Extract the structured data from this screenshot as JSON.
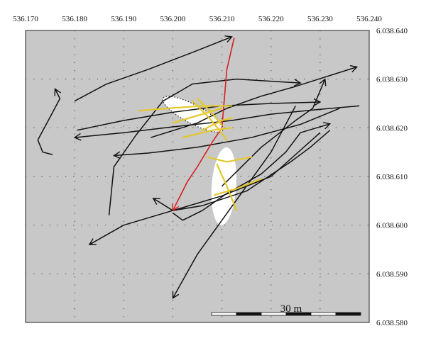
{
  "chart_data": {
    "type": "map",
    "xlim": [
      536.17,
      536.24
    ],
    "ylim": [
      6038.58,
      6038.64
    ],
    "x_ticks": [
      "536.170",
      "536.180",
      "536.190",
      "536.200",
      "536.210",
      "536.220",
      "536.230",
      "536.240"
    ],
    "x_tick_values": [
      536.17,
      536.18,
      536.19,
      536.2,
      536.21,
      536.22,
      536.23,
      536.24
    ],
    "y_ticks": [
      "6.038.640",
      "6.038.630",
      "6.038.620",
      "6.038.610",
      "6.038.600",
      "6.038.590",
      "6.038.580"
    ],
    "y_tick_values": [
      6038.64,
      6038.63,
      6038.62,
      6038.61,
      6038.6,
      6038.59,
      6038.58
    ],
    "grid": true,
    "grid_style": "dotted",
    "background_color": "#c8c8c8",
    "scale_bar_label": "30 m",
    "colors": {
      "track": "#111111",
      "highlight": "#e4c82c",
      "red_track": "#d42020",
      "zone": "#ffffff"
    },
    "zones": [
      {
        "shape": "ellipse",
        "cx": 536.2041,
        "cy": 6038.6228,
        "rx": 0.0069,
        "ry": 0.0019,
        "rotation_deg": 28,
        "border": "dotted"
      },
      {
        "shape": "ellipse",
        "cx": 536.2104,
        "cy": 6038.608,
        "rx": 0.0025,
        "ry": 0.008,
        "rotation_deg": 4,
        "border": "none"
      }
    ],
    "tracks": [
      {
        "color": "black",
        "arrow": "end",
        "points": [
          [
            536.18,
            6038.6255
          ],
          [
            536.1865,
            6038.629
          ],
          [
            536.195,
            6038.632
          ],
          [
            536.204,
            6038.6355
          ],
          [
            536.212,
            6038.6387
          ]
        ]
      },
      {
        "color": "black",
        "arrow": "end",
        "points": [
          [
            536.1805,
            6038.6195
          ],
          [
            536.19,
            6038.6215
          ],
          [
            536.2,
            6038.6232
          ],
          [
            536.21,
            6038.6245
          ],
          [
            536.22,
            6038.625
          ],
          [
            536.23,
            6038.6253
          ]
        ]
      },
      {
        "color": "black",
        "arrow": "end",
        "points": [
          [
            536.1955,
            6038.618
          ],
          [
            536.205,
            6038.621
          ],
          [
            536.211,
            6038.624
          ],
          [
            536.218,
            6038.6265
          ],
          [
            536.225,
            6038.6285
          ],
          [
            536.2375,
            6038.6325
          ]
        ]
      },
      {
        "color": "black",
        "arrow": "end",
        "points": [
          [
            536.238,
            6038.6245
          ],
          [
            536.23,
            6038.6238
          ],
          [
            536.22,
            6038.6228
          ],
          [
            536.212,
            6038.6215
          ],
          [
            536.2,
            6038.6202
          ],
          [
            536.19,
            6038.619
          ],
          [
            536.18,
            6038.618
          ]
        ]
      },
      {
        "color": "black",
        "arrow": "end",
        "points": [
          [
            536.1755,
            6038.6145
          ],
          [
            536.1735,
            6038.615
          ],
          [
            536.1725,
            6038.6175
          ],
          [
            536.175,
            6038.6222
          ],
          [
            536.177,
            6038.626
          ],
          [
            536.176,
            6038.628
          ]
        ]
      },
      {
        "color": "black",
        "arrow": "end",
        "points": [
          [
            536.234,
            6038.624
          ],
          [
            536.226,
            6038.6207
          ],
          [
            536.216,
            6038.618
          ],
          [
            536.205,
            6038.616
          ],
          [
            536.195,
            6038.6148
          ],
          [
            536.188,
            6038.6143
          ]
        ]
      },
      {
        "color": "black",
        "arrow": "end",
        "points": [
          [
            536.232,
            6038.6195
          ],
          [
            536.228,
            6038.616
          ],
          [
            536.224,
            6038.613
          ],
          [
            536.215,
            6038.607
          ],
          [
            536.206,
            6038.604
          ],
          [
            536.2,
            6038.603
          ],
          [
            536.196,
            6038.6055
          ]
        ]
      },
      {
        "color": "black",
        "arrow": "end",
        "points": [
          [
            536.225,
            6038.6245
          ],
          [
            536.22,
            6038.615
          ],
          [
            536.215,
            6038.608
          ],
          [
            536.21,
            6038.601
          ],
          [
            536.205,
            6038.594
          ],
          [
            536.2,
            6038.585
          ]
        ]
      },
      {
        "color": "black",
        "arrow": "end",
        "points": [
          [
            536.187,
            6038.602
          ],
          [
            536.188,
            6038.612
          ],
          [
            536.1925,
            6038.6185
          ],
          [
            536.198,
            6038.6255
          ],
          [
            536.204,
            6038.629
          ],
          [
            536.213,
            6038.63
          ],
          [
            536.226,
            6038.6292
          ]
        ]
      },
      {
        "color": "black",
        "arrow": "end",
        "points": [
          [
            536.21,
            6038.608
          ],
          [
            536.218,
            6038.616
          ],
          [
            536.225,
            6038.6215
          ],
          [
            536.2285,
            6038.624
          ],
          [
            536.231,
            6038.63
          ]
        ]
      },
      {
        "color": "black",
        "arrow": "end",
        "points": [
          [
            536.2,
            6038.6025
          ],
          [
            536.202,
            6038.601
          ],
          [
            536.206,
            6038.603
          ],
          [
            536.211,
            6038.6065
          ],
          [
            536.218,
            6038.6105
          ],
          [
            536.223,
            6038.615
          ],
          [
            536.226,
            6038.619
          ],
          [
            536.232,
            6038.6208
          ]
        ]
      },
      {
        "color": "black",
        "arrow": "end",
        "points": [
          [
            536.23,
            6038.619
          ],
          [
            536.22,
            6038.61
          ],
          [
            536.21,
            6038.606
          ],
          [
            536.2,
            6038.603
          ],
          [
            536.19,
            6038.6
          ],
          [
            536.183,
            6038.596
          ]
        ]
      },
      {
        "color": "red",
        "arrow": "end",
        "points": [
          [
            536.2125,
            6038.6385
          ],
          [
            536.211,
            6038.632
          ],
          [
            536.2105,
            6038.626
          ],
          [
            536.21,
            6038.62
          ],
          [
            536.208,
            6038.617
          ],
          [
            536.205,
            6038.612
          ],
          [
            536.203,
            6038.609
          ],
          [
            536.2,
            6038.603
          ]
        ]
      }
    ],
    "highlight_segments": [
      [
        [
          536.193,
          6038.6235
        ],
        [
          536.199,
          6038.624
        ],
        [
          536.206,
          6038.6245
        ],
        [
          536.212,
          6038.6245
        ]
      ],
      [
        [
          536.2,
          6038.621
        ],
        [
          536.205,
          6038.6225
        ],
        [
          536.21,
          6038.624
        ]
      ],
      [
        [
          536.206,
          6038.6195
        ],
        [
          536.21,
          6038.6215
        ],
        [
          536.212,
          6038.622
        ]
      ],
      [
        [
          536.202,
          6038.618
        ],
        [
          536.208,
          6038.6195
        ],
        [
          536.212,
          6038.62
        ]
      ],
      [
        [
          536.204,
          6038.6255
        ],
        [
          536.207,
          6038.6225
        ],
        [
          536.2095,
          6038.6195
        ],
        [
          536.211,
          6038.6175
        ]
      ],
      [
        [
          536.205,
          6038.626
        ],
        [
          536.208,
          6038.623
        ],
        [
          536.21,
          6038.6205
        ]
      ],
      [
        [
          536.207,
          6038.614
        ],
        [
          536.211,
          6038.613
        ],
        [
          536.216,
          6038.614
        ]
      ],
      [
        [
          536.2085,
          6038.6062
        ],
        [
          536.213,
          6038.6075
        ],
        [
          536.218,
          6038.6095
        ]
      ],
      [
        [
          536.209,
          6038.6125
        ],
        [
          536.211,
          6038.608
        ],
        [
          536.213,
          6038.603
        ]
      ]
    ]
  }
}
